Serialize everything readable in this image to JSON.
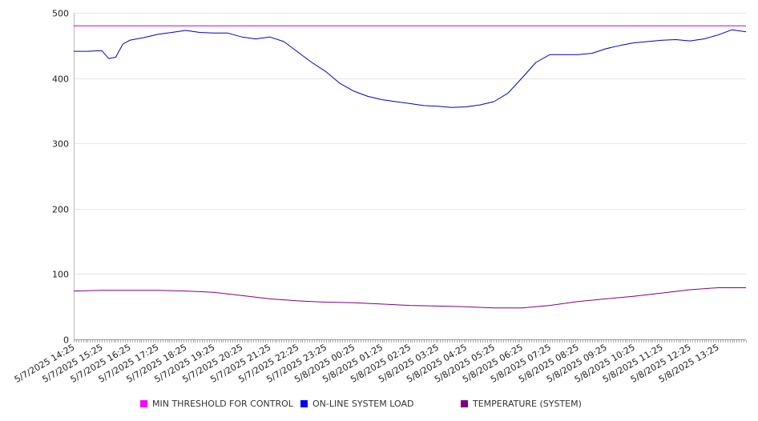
{
  "chart_data": {
    "type": "line",
    "title": "",
    "xlabel": "",
    "ylabel": "",
    "ylim": [
      0,
      500
    ],
    "yticks": [
      0,
      100,
      200,
      300,
      400,
      500
    ],
    "grid": "horizontal",
    "legend_position": "bottom",
    "x_tick_labels": [
      "5/7/2025 14:25",
      "5/7/2025 15:25",
      "5/7/2025 16:25",
      "5/7/2025 17:25",
      "5/7/2025 18:25",
      "5/7/2025 19:25",
      "5/7/2025 20:25",
      "5/7/2025 21:25",
      "5/7/2025 22:25",
      "5/7/2025 23:25",
      "5/8/2025 00:25",
      "5/8/2025 01:25",
      "5/8/2025 02:25",
      "5/8/2025 03:25",
      "5/8/2025 04:25",
      "5/8/2025 05:25",
      "5/8/2025 06:25",
      "5/8/2025 07:25",
      "5/8/2025 08:25",
      "5/8/2025 09:25",
      "5/8/2025 10:25",
      "5/8/2025 11:25",
      "5/8/2025 12:25",
      "5/8/2025 13:25"
    ],
    "series": [
      {
        "name": "MIN THRESHOLD FOR CONTROL",
        "color": "#cc00cc",
        "x": [
          "5/7/2025 14:25",
          "5/8/2025 14:25"
        ],
        "values": [
          480,
          480
        ]
      },
      {
        "name": "ON-LINE SYSTEM LOAD",
        "color": "#0000cc",
        "x": [
          "5/7/2025 14:25",
          "5/7/2025 14:55",
          "5/7/2025 15:25",
          "5/7/2025 15:40",
          "5/7/2025 15:55",
          "5/7/2025 16:10",
          "5/7/2025 16:25",
          "5/7/2025 16:55",
          "5/7/2025 17:25",
          "5/7/2025 17:55",
          "5/7/2025 18:25",
          "5/7/2025 18:55",
          "5/7/2025 19:25",
          "5/7/2025 19:55",
          "5/7/2025 20:25",
          "5/7/2025 20:55",
          "5/7/2025 21:25",
          "5/7/2025 21:55",
          "5/7/2025 22:25",
          "5/7/2025 22:55",
          "5/7/2025 23:25",
          "5/7/2025 23:55",
          "5/8/2025 00:25",
          "5/8/2025 00:55",
          "5/8/2025 01:25",
          "5/8/2025 01:55",
          "5/8/2025 02:25",
          "5/8/2025 02:55",
          "5/8/2025 03:25",
          "5/8/2025 03:55",
          "5/8/2025 04:25",
          "5/8/2025 04:55",
          "5/8/2025 05:25",
          "5/8/2025 05:55",
          "5/8/2025 06:25",
          "5/8/2025 06:55",
          "5/8/2025 07:25",
          "5/8/2025 07:55",
          "5/8/2025 08:25",
          "5/8/2025 08:55",
          "5/8/2025 09:25",
          "5/8/2025 09:55",
          "5/8/2025 10:25",
          "5/8/2025 10:55",
          "5/8/2025 11:25",
          "5/8/2025 11:55",
          "5/8/2025 12:25",
          "5/8/2025 12:55",
          "5/8/2025 13:25",
          "5/8/2025 13:55",
          "5/8/2025 14:25"
        ],
        "values": [
          441,
          441,
          442,
          430,
          432,
          452,
          458,
          462,
          467,
          470,
          473,
          470,
          469,
          469,
          463,
          460,
          463,
          456,
          440,
          424,
          410,
          392,
          380,
          372,
          367,
          364,
          361,
          358,
          357,
          355,
          356,
          359,
          364,
          377,
          400,
          424,
          436,
          436,
          436,
          438,
          445,
          450,
          454,
          456,
          458,
          459,
          457,
          460,
          466,
          474,
          471
        ]
      },
      {
        "name": "TEMPERATURE (SYSTEM)",
        "color": "#800080",
        "x": [
          "5/7/2025 14:25",
          "5/7/2025 15:25",
          "5/7/2025 16:25",
          "5/7/2025 17:25",
          "5/7/2025 18:25",
          "5/7/2025 19:25",
          "5/7/2025 20:25",
          "5/7/2025 21:25",
          "5/7/2025 22:25",
          "5/7/2025 23:25",
          "5/8/2025 00:25",
          "5/8/2025 01:25",
          "5/8/2025 02:25",
          "5/8/2025 03:25",
          "5/8/2025 04:25",
          "5/8/2025 05:25",
          "5/8/2025 06:25",
          "5/8/2025 07:25",
          "5/8/2025 08:25",
          "5/8/2025 09:25",
          "5/8/2025 10:25",
          "5/8/2025 11:25",
          "5/8/2025 12:25",
          "5/8/2025 13:25",
          "5/8/2025 14:25"
        ],
        "values": [
          74,
          75,
          75,
          75,
          74,
          72,
          67,
          62,
          59,
          57,
          56,
          54,
          52,
          51,
          50,
          48,
          48,
          52,
          58,
          62,
          66,
          71,
          76,
          79,
          79
        ]
      }
    ]
  }
}
